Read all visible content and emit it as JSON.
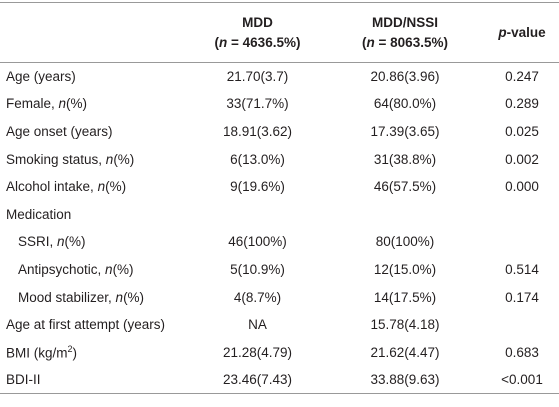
{
  "header": {
    "mdd": {
      "name": "MDD",
      "n": [
        "(",
        "n",
        " = 4636.5%)"
      ]
    },
    "nssi": {
      "name": "MDD/NSSI",
      "n": [
        "(",
        "n",
        " = 8063.5%)"
      ]
    },
    "p": [
      "p",
      "-value"
    ]
  },
  "rows": [
    {
      "label": "Age (years)",
      "mdd": "21.70(3.7)",
      "nssi": "20.86(3.96)",
      "p": "0.247"
    },
    {
      "label": [
        "Female, ",
        "n",
        "(%)"
      ],
      "mdd": "33(71.7%)",
      "nssi": "64(80.0%)",
      "p": "0.289"
    },
    {
      "label": "Age onset (years)",
      "mdd": "18.91(3.62)",
      "nssi": "17.39(3.65)",
      "p": "0.025"
    },
    {
      "label": [
        "Smoking status, ",
        "n",
        "(%)"
      ],
      "mdd": "6(13.0%)",
      "nssi": "31(38.8%)",
      "p": "0.002"
    },
    {
      "label": [
        "Alcohol intake, ",
        "n",
        "(%)"
      ],
      "mdd": "9(19.6%)",
      "nssi": "46(57.5%)",
      "p": "0.000"
    },
    {
      "label": "Medication"
    },
    {
      "label": [
        "SSRI, ",
        "n",
        "(%)"
      ],
      "mdd": "46(100%)",
      "nssi": "80(100%)"
    },
    {
      "label": [
        "Antipsychotic, ",
        "n",
        "(%)"
      ],
      "mdd": "5(10.9%)",
      "nssi": "12(15.0%)",
      "p": "0.514"
    },
    {
      "label": [
        "Mood stabilizer, ",
        "n",
        "(%)"
      ],
      "mdd": "4(8.7%)",
      "nssi": "14(17.5%)",
      "p": "0.174"
    },
    {
      "label": "Age at first attempt (years)",
      "mdd": "NA",
      "nssi": "15.78(4.18)"
    },
    {
      "label": [
        "BMI (kg/m",
        "2",
        ")"
      ],
      "mdd": "21.28(4.79)",
      "nssi": "21.62(4.47)",
      "p": "0.683"
    },
    {
      "label": "BDI-II",
      "mdd": "23.46(7.43)",
      "nssi": "33.88(9.63)",
      "p": "<0.001"
    }
  ]
}
